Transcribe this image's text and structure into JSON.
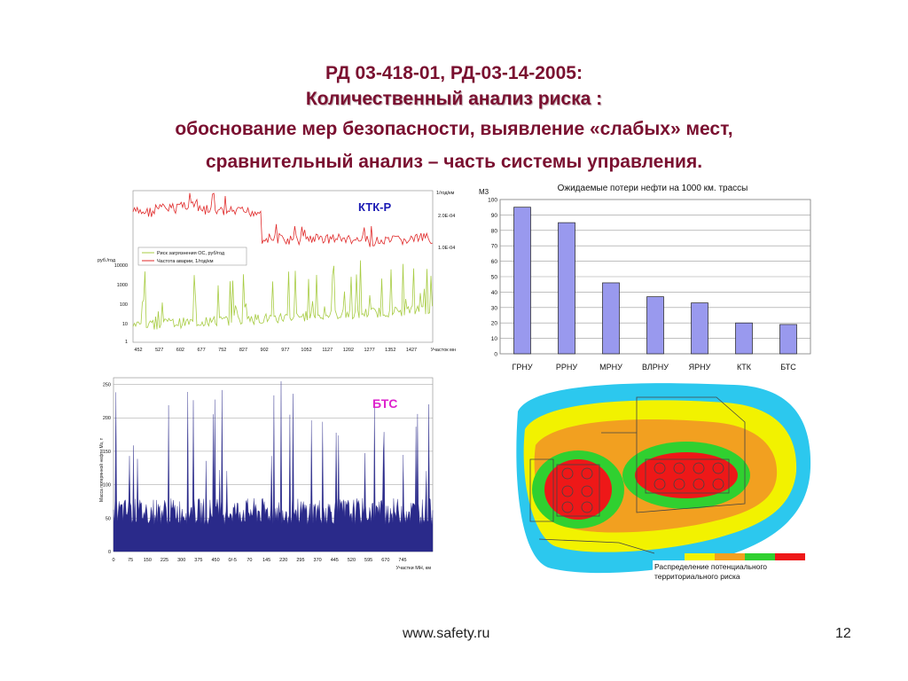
{
  "header": {
    "line1": "РД 03-418-01, РД-03-14-2005:",
    "line2": "Количественный анализ риска :",
    "line3": "обоснование мер безопасности, выявление «слабых» мест,",
    "line4": "сравнительный анализ – часть системы управления."
  },
  "chart_data": [
    {
      "type": "bar",
      "title": "Ожидаемые потери нефти на 1000 км. трассы",
      "ylabel": "М3",
      "categories": [
        "ГРНУ",
        "РРНУ",
        "МРНУ",
        "ВЛРНУ",
        "ЯРНУ",
        "КТК",
        "БТС"
      ],
      "values": [
        95,
        85,
        46,
        37,
        33,
        20,
        19
      ],
      "ylim": [
        0,
        100
      ],
      "yticks": [
        0,
        10,
        20,
        30,
        40,
        50,
        60,
        70,
        80,
        90,
        100
      ],
      "grid": true,
      "bar_color": "#9999ee"
    },
    {
      "type": "line",
      "label": "КТК-Р",
      "ylabel_left": "руб./год",
      "ylabel_right": "1/год/км",
      "xlabel": "Участок мн",
      "y_left_scale": "log",
      "y_left_ticks": [
        "1",
        "10",
        "100",
        "1000",
        "10000"
      ],
      "y_right_ticks": [
        "2.0E-04",
        "1.0E-04"
      ],
      "x_ticks": [
        "452",
        "527",
        "602",
        "677",
        "752",
        "827",
        "902",
        "977",
        "1052",
        "1127",
        "1202",
        "1277",
        "1352",
        "1427"
      ],
      "series": [
        {
          "name": "Риск загрязнения ОС, руб/год",
          "color": "#a8cc44"
        },
        {
          "name": "Частота аварии, 1/год/км",
          "color": "#e02a2a"
        }
      ]
    },
    {
      "type": "area",
      "label": "БТС",
      "ylabel": "Масса потерянной нефти Мз, т",
      "xlabel": "Участки МН, км",
      "ylim": [
        0,
        260
      ],
      "y_ticks": [
        "0",
        "50",
        "100",
        "150",
        "200",
        "250"
      ],
      "x_ticks": [
        "0",
        "75",
        "150",
        "225",
        "300",
        "375",
        "450",
        "0/-5",
        "70",
        "145",
        "220",
        "295",
        "370",
        "445",
        "520",
        "595",
        "670",
        "745"
      ],
      "series": [
        {
          "color": "#2a2a8a"
        }
      ]
    }
  ],
  "risk_map": {
    "caption": "Распределение потенциального территориального риска",
    "scale_colors": [
      "#2cc8ee",
      "#f2f200",
      "#f2a020",
      "#30d030",
      "#ee1818"
    ]
  },
  "footer": {
    "url": "www.safety.ru",
    "page": "12"
  }
}
